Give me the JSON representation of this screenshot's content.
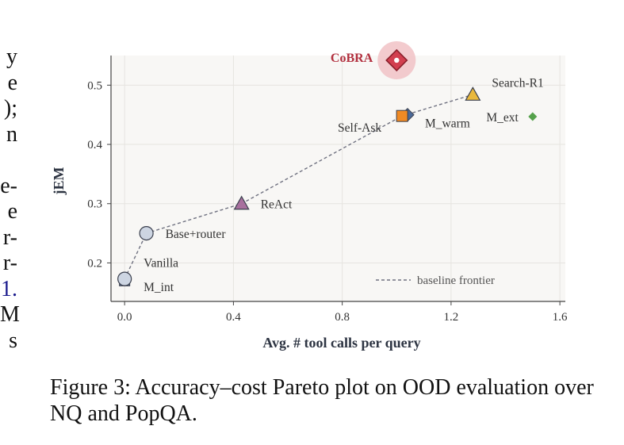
{
  "left_fragments": [
    "y",
    "e",
    ");",
    "n",
    "",
    "e-",
    "e",
    "r-",
    "r-",
    "1.",
    "M",
    "s"
  ],
  "caption": "Figure 3: Accuracy–cost Pareto plot on OOD evaluation over NQ and PopQA.",
  "chart_data": {
    "type": "scatter",
    "xlabel": "Avg. # tool calls per query",
    "ylabel": "jEM",
    "xlim": [
      -0.05,
      1.62
    ],
    "ylim": [
      0.135,
      0.55
    ],
    "xticks": [
      0.0,
      0.4,
      0.8,
      1.2,
      1.6
    ],
    "xtick_labels": [
      "0.0",
      "0.4",
      "0.8",
      "1.2",
      "1.6"
    ],
    "yticks": [
      0.2,
      0.3,
      0.4,
      0.5
    ],
    "ytick_labels": [
      "0.2",
      "0.3",
      "0.4",
      "0.5"
    ],
    "grid": true,
    "points": [
      {
        "label": "M_int",
        "x": 0.0,
        "y": 0.17,
        "marker": "square",
        "color": "#5a6f8f"
      },
      {
        "label": "Vanilla",
        "x": 0.0,
        "y": 0.173,
        "marker": "circle",
        "color": "#cdd5e2"
      },
      {
        "label": "Base+router",
        "x": 0.08,
        "y": 0.25,
        "marker": "circle",
        "color": "#cdd5e2"
      },
      {
        "label": "ReAct",
        "x": 0.43,
        "y": 0.3,
        "marker": "triangle",
        "color": "#a8709e"
      },
      {
        "label": "M_warm",
        "x": 1.04,
        "y": 0.45,
        "marker": "diamond",
        "color": "#4c6a99"
      },
      {
        "label": "Self-Ask",
        "x": 1.02,
        "y": 0.448,
        "marker": "square",
        "color": "#f08a24"
      },
      {
        "label": "Search-R1",
        "x": 1.28,
        "y": 0.484,
        "marker": "triangle",
        "color": "#e9b83c"
      },
      {
        "label": "M_ext",
        "x": 1.5,
        "y": 0.447,
        "marker": "diamond",
        "color": "#55a14b"
      },
      {
        "label": "CoBRA",
        "x": 1.0,
        "y": 0.542,
        "marker": "diamond",
        "color": "#d23f4f",
        "highlight": true
      }
    ],
    "frontier": {
      "name": "baseline frontier",
      "x": [
        0.0,
        0.08,
        0.43,
        1.02,
        1.28
      ],
      "y": [
        0.173,
        0.25,
        0.3,
        0.448,
        0.484
      ]
    },
    "legend": {
      "entries": [
        "baseline frontier"
      ],
      "placement": "bottom-right"
    }
  }
}
